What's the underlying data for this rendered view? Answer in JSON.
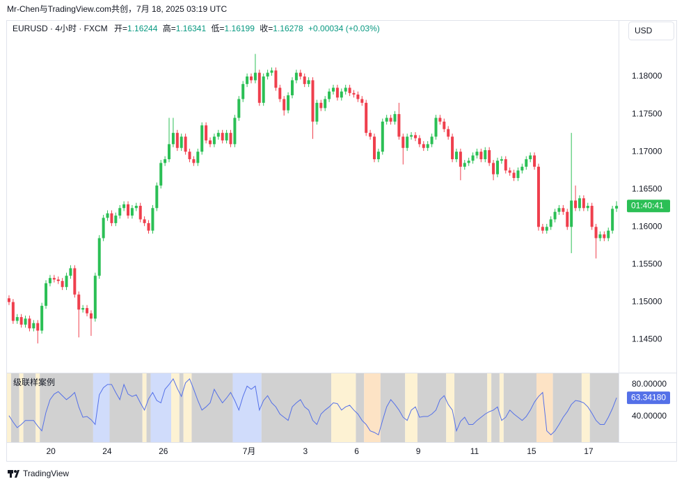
{
  "header": {
    "title": "Mr-Chen与TradingView.com共创，7月 18, 2025 03:19 UTC"
  },
  "chart_data": {
    "type": "candlestick",
    "symbol": "EURUSD · 4小时 · FXCM",
    "legend_labels": {
      "open": "开=",
      "high": "高=",
      "low": "低=",
      "close": "收="
    },
    "change": "+0.00034 (+0.03%)",
    "currency": "USD",
    "countdown": "01:40:41",
    "open": [
      1.1505,
      1.15,
      1.1475,
      1.148,
      1.147,
      1.1478,
      1.1465,
      1.1472,
      1.1462,
      1.1495,
      1.1525,
      1.1532,
      1.153,
      1.1528,
      1.152,
      1.1535,
      1.1545,
      1.151,
      1.149,
      1.1492,
      1.1485,
      1.1478,
      1.1535,
      1.1585,
      1.1612,
      1.1618,
      1.1605,
      1.1615,
      1.1625,
      1.163,
      1.1615,
      1.1625,
      1.1628,
      1.161,
      1.1605,
      1.1595,
      1.1625,
      1.1655,
      1.1685,
      1.169,
      1.171,
      1.1725,
      1.1705,
      1.172,
      1.17,
      1.169,
      1.1685,
      1.17,
      1.1735,
      1.1715,
      1.171,
      1.172,
      1.1725,
      1.1715,
      1.1725,
      1.171,
      1.1745,
      1.177,
      1.179,
      1.18,
      1.1795,
      1.1805,
      1.1765,
      1.18,
      1.1805,
      1.1808,
      1.1785,
      1.177,
      1.1755,
      1.1775,
      1.1795,
      1.1805,
      1.18,
      1.179,
      1.1795,
      1.174,
      1.1765,
      1.1758,
      1.177,
      1.178,
      1.1785,
      1.1772,
      1.178,
      1.1785,
      1.1778,
      1.1776,
      1.177,
      1.1765,
      1.1725,
      1.172,
      1.169,
      1.17,
      1.174,
      1.1745,
      1.174,
      1.175,
      1.172,
      1.1705,
      1.172,
      1.1722,
      1.1718,
      1.171,
      1.1705,
      1.171,
      1.172,
      1.1745,
      1.174,
      1.173,
      1.172,
      1.169,
      1.17,
      1.168,
      1.1685,
      1.1688,
      1.1695,
      1.17,
      1.169,
      1.1702,
      1.1685,
      1.167,
      1.1688,
      1.169,
      1.1675,
      1.1672,
      1.1665,
      1.1675,
      1.168,
      1.169,
      1.1695,
      1.168,
      1.16,
      1.1595,
      1.16,
      1.161,
      1.162,
      1.1625,
      1.162,
      1.16,
      1.1635,
      1.1625,
      1.1638,
      1.1625,
      1.1628,
      1.16,
      1.1585,
      1.159,
      1.1585,
      1.1595,
      1.16244
    ],
    "high": [
      1.1509,
      1.1504,
      1.1484,
      1.1484,
      1.1482,
      1.1482,
      1.1476,
      1.1476,
      1.1499,
      1.1529,
      1.1536,
      1.1536,
      1.1534,
      1.1532,
      1.1539,
      1.1549,
      1.1549,
      1.1514,
      1.1496,
      1.1496,
      1.1489,
      1.1539,
      1.1589,
      1.1616,
      1.1622,
      1.1622,
      1.1619,
      1.1629,
      1.1634,
      1.1634,
      1.1629,
      1.1632,
      1.1632,
      1.1614,
      1.1609,
      1.1629,
      1.1659,
      1.1689,
      1.1694,
      1.1745,
      1.1745,
      1.1729,
      1.1724,
      1.1724,
      1.1704,
      1.1694,
      1.1704,
      1.1739,
      1.1739,
      1.1719,
      1.1724,
      1.1729,
      1.1729,
      1.1729,
      1.1729,
      1.1749,
      1.1774,
      1.1794,
      1.1804,
      1.1804,
      1.183,
      1.1809,
      1.1804,
      1.1809,
      1.1812,
      1.1812,
      1.1789,
      1.1774,
      1.1779,
      1.1799,
      1.1809,
      1.1809,
      1.1804,
      1.1799,
      1.1799,
      1.1769,
      1.1769,
      1.1774,
      1.1784,
      1.1789,
      1.1789,
      1.1784,
      1.1789,
      1.1789,
      1.1782,
      1.178,
      1.1774,
      1.1769,
      1.1729,
      1.1724,
      1.1704,
      1.1744,
      1.1749,
      1.1749,
      1.1754,
      1.1765,
      1.1724,
      1.1724,
      1.1726,
      1.1726,
      1.1722,
      1.1714,
      1.1714,
      1.1724,
      1.1749,
      1.1749,
      1.1744,
      1.1734,
      1.1724,
      1.1704,
      1.1704,
      1.1689,
      1.1692,
      1.1699,
      1.1704,
      1.1704,
      1.1706,
      1.1706,
      1.1689,
      1.1692,
      1.1694,
      1.1694,
      1.1679,
      1.1676,
      1.1679,
      1.1684,
      1.1694,
      1.1699,
      1.1699,
      1.1684,
      1.1604,
      1.1604,
      1.1614,
      1.1624,
      1.1629,
      1.1629,
      1.1624,
      1.1725,
      1.1655,
      1.1642,
      1.1642,
      1.1632,
      1.1632,
      1.1604,
      1.1594,
      1.1594,
      1.1599,
      1.1628,
      1.16341
    ],
    "low": [
      1.1496,
      1.1471,
      1.1471,
      1.1466,
      1.1466,
      1.1461,
      1.1461,
      1.1445,
      1.1458,
      1.1491,
      1.1521,
      1.1526,
      1.1524,
      1.1516,
      1.1516,
      1.1531,
      1.1506,
      1.1453,
      1.1486,
      1.1481,
      1.1455,
      1.1474,
      1.1531,
      1.1581,
      1.1608,
      1.1601,
      1.1601,
      1.1611,
      1.1621,
      1.1611,
      1.1611,
      1.1621,
      1.1606,
      1.1601,
      1.1591,
      1.1591,
      1.1621,
      1.1651,
      1.1681,
      1.1686,
      1.1706,
      1.1701,
      1.1701,
      1.1696,
      1.1686,
      1.1681,
      1.1681,
      1.1696,
      1.1711,
      1.1706,
      1.1706,
      1.1716,
      1.1711,
      1.1711,
      1.1706,
      1.1706,
      1.1741,
      1.1766,
      1.1786,
      1.1791,
      1.1791,
      1.1761,
      1.1761,
      1.1796,
      1.1801,
      1.1781,
      1.1766,
      1.1748,
      1.1751,
      1.1771,
      1.1791,
      1.1796,
      1.1786,
      1.1786,
      1.1717,
      1.1736,
      1.1754,
      1.1754,
      1.1766,
      1.1776,
      1.1768,
      1.1768,
      1.1776,
      1.1774,
      1.1772,
      1.1766,
      1.1761,
      1.1721,
      1.1716,
      1.1686,
      1.1686,
      1.1696,
      1.1736,
      1.1736,
      1.1736,
      1.1716,
      1.1683,
      1.1701,
      1.1716,
      1.1714,
      1.1706,
      1.1701,
      1.1701,
      1.1706,
      1.1716,
      1.1736,
      1.1726,
      1.1716,
      1.1686,
      1.1686,
      1.1662,
      1.1676,
      1.1681,
      1.1684,
      1.1691,
      1.1686,
      1.1686,
      1.1681,
      1.1662,
      1.1666,
      1.1684,
      1.1671,
      1.1668,
      1.1661,
      1.1661,
      1.1671,
      1.1676,
      1.1686,
      1.1676,
      1.1595,
      1.1591,
      1.1591,
      1.1596,
      1.1606,
      1.1616,
      1.1616,
      1.1596,
      1.1565,
      1.1621,
      1.1621,
      1.1621,
      1.1621,
      1.1596,
      1.1558,
      1.1581,
      1.1581,
      1.1581,
      1.1591,
      1.16199
    ],
    "close": [
      1.15,
      1.1475,
      1.148,
      1.147,
      1.1478,
      1.1465,
      1.1472,
      1.1462,
      1.1495,
      1.1525,
      1.1532,
      1.153,
      1.1528,
      1.152,
      1.1535,
      1.1545,
      1.151,
      1.149,
      1.1492,
      1.1485,
      1.1478,
      1.1535,
      1.1585,
      1.1612,
      1.1618,
      1.1605,
      1.1615,
      1.1625,
      1.163,
      1.1615,
      1.1625,
      1.1628,
      1.161,
      1.1605,
      1.1595,
      1.1625,
      1.1655,
      1.1685,
      1.169,
      1.171,
      1.1725,
      1.1705,
      1.172,
      1.17,
      1.169,
      1.1685,
      1.17,
      1.1735,
      1.1715,
      1.171,
      1.172,
      1.1725,
      1.1715,
      1.1725,
      1.171,
      1.1745,
      1.177,
      1.179,
      1.18,
      1.1795,
      1.1805,
      1.1765,
      1.18,
      1.1805,
      1.1808,
      1.1785,
      1.177,
      1.1755,
      1.1775,
      1.1795,
      1.1805,
      1.18,
      1.179,
      1.1795,
      1.174,
      1.1765,
      1.1758,
      1.177,
      1.178,
      1.1785,
      1.1772,
      1.178,
      1.1785,
      1.1778,
      1.1776,
      1.177,
      1.1765,
      1.1725,
      1.172,
      1.169,
      1.17,
      1.174,
      1.1745,
      1.174,
      1.175,
      1.172,
      1.1705,
      1.172,
      1.1722,
      1.1718,
      1.171,
      1.1705,
      1.171,
      1.172,
      1.1745,
      1.174,
      1.173,
      1.172,
      1.169,
      1.17,
      1.168,
      1.1685,
      1.1688,
      1.1695,
      1.17,
      1.169,
      1.1702,
      1.1685,
      1.167,
      1.1688,
      1.169,
      1.1675,
      1.1672,
      1.1665,
      1.1675,
      1.168,
      1.169,
      1.1695,
      1.168,
      1.16,
      1.1595,
      1.16,
      1.161,
      1.162,
      1.1625,
      1.162,
      1.16,
      1.1635,
      1.1625,
      1.1638,
      1.1625,
      1.1628,
      1.16,
      1.1585,
      1.159,
      1.1585,
      1.1595,
      1.1624,
      1.16278
    ],
    "up_color": "#2bbf55",
    "down_color": "#ef3f4d",
    "ylim": [
      1.1407,
      1.1874
    ],
    "yticks": [
      {
        "value": 1.18,
        "label": "1.18000"
      },
      {
        "value": 1.175,
        "label": "1.17500"
      },
      {
        "value": 1.17,
        "label": "1.17000"
      },
      {
        "value": 1.165,
        "label": "1.16500"
      },
      {
        "value": 1.16,
        "label": "1.16000"
      },
      {
        "value": 1.155,
        "label": "1.15500"
      },
      {
        "value": 1.15,
        "label": "1.15000"
      },
      {
        "value": 1.145,
        "label": "1.14500"
      }
    ],
    "xlim": [
      -0.5,
      148.5
    ],
    "xticks": [
      {
        "value": 10.2,
        "label": "20"
      },
      {
        "value": 23.9,
        "label": "24"
      },
      {
        "value": 37.6,
        "label": "26"
      },
      {
        "value": 58.5,
        "label": "7月"
      },
      {
        "value": 72.2,
        "label": "3"
      },
      {
        "value": 84.7,
        "label": "6"
      },
      {
        "value": 99.7,
        "label": "9"
      },
      {
        "value": 113.4,
        "label": "11"
      },
      {
        "value": 127.3,
        "label": "15"
      },
      {
        "value": 141.2,
        "label": "17"
      }
    ],
    "indicator": {
      "title": "级联样案例",
      "color": "#5470e8",
      "values": [
        41,
        33,
        26,
        30,
        35,
        35,
        35,
        28,
        22,
        45,
        61,
        68,
        71,
        66,
        61,
        65,
        70,
        52,
        39,
        40,
        36,
        30,
        67,
        76,
        80,
        80,
        70,
        61,
        80,
        68,
        65,
        67,
        57,
        48,
        62,
        70,
        60,
        57,
        74,
        80,
        87,
        75,
        65,
        82,
        87,
        74,
        60,
        48,
        52,
        57,
        74,
        65,
        57,
        63,
        70,
        60,
        48,
        65,
        78,
        74,
        78,
        48,
        60,
        66,
        57,
        52,
        43,
        39,
        35,
        52,
        57,
        61,
        52,
        48,
        35,
        30,
        43,
        48,
        52,
        57,
        56,
        48,
        52,
        54,
        48,
        43,
        35,
        30,
        22,
        20,
        17,
        35,
        52,
        61,
        55,
        48,
        39,
        35,
        48,
        52,
        39,
        40,
        40,
        43,
        48,
        61,
        66,
        55,
        48,
        22,
        34,
        39,
        30,
        30,
        35,
        39,
        43,
        46,
        48,
        52,
        35,
        39,
        48,
        43,
        39,
        35,
        40,
        48,
        58,
        65,
        70,
        22,
        17,
        22,
        30,
        39,
        46,
        55,
        60,
        59,
        57,
        52,
        44,
        35,
        30,
        30,
        39,
        50,
        63.3418
      ],
      "value_labels": [
        null,
        null,
        null,
        null,
        null,
        null,
        null,
        null,
        null,
        null,
        null,
        null,
        null,
        null,
        null,
        null,
        null,
        null,
        null,
        null,
        null,
        null,
        null,
        null,
        null,
        null,
        null,
        null,
        null,
        null,
        null,
        null,
        null,
        null,
        null,
        null,
        null,
        null,
        null,
        null,
        null,
        null,
        null,
        null,
        null,
        null,
        null,
        null,
        null,
        null,
        null,
        null,
        null,
        null,
        null,
        null,
        null,
        null,
        null,
        null,
        null,
        null,
        null,
        null,
        null,
        null,
        null,
        null,
        null,
        null,
        null,
        null,
        null,
        null,
        null,
        null,
        null,
        null,
        null,
        null,
        null,
        null,
        null,
        null,
        null,
        null,
        null,
        null,
        null,
        null,
        null,
        null,
        null,
        null,
        null,
        null,
        null,
        null,
        null,
        null,
        null,
        null,
        null,
        null,
        null,
        null,
        null,
        null,
        null,
        null,
        null,
        null,
        null,
        null,
        null,
        null,
        null,
        null,
        null,
        null,
        null,
        null,
        null,
        null,
        null,
        null,
        null,
        null,
        null,
        null,
        null,
        null,
        null,
        null,
        null,
        null,
        null,
        null,
        null,
        null,
        null,
        null,
        null,
        null,
        null,
        null,
        null,
        null,
        "63.34180"
      ],
      "ylim": [
        7.8,
        93.9
      ],
      "yticks": [
        {
          "value": 80,
          "label": "80.00000"
        },
        {
          "value": 40,
          "label": "40.00000"
        }
      ],
      "band_colors": {
        "gray": "#d1d1d1",
        "blue": "#d0dcfb",
        "yellow": "#fdf2d3",
        "orange": "#fde3c5"
      },
      "bands": [
        {
          "from": 0,
          "to": 0,
          "color": "yellow"
        },
        {
          "from": 1,
          "to": 2,
          "color": "gray"
        },
        {
          "from": 3,
          "to": 3,
          "color": "yellow"
        },
        {
          "from": 4,
          "to": 6,
          "color": "gray"
        },
        {
          "from": 7,
          "to": 7,
          "color": "yellow"
        },
        {
          "from": 8,
          "to": 20,
          "color": "gray"
        },
        {
          "from": 21,
          "to": 24,
          "color": "blue"
        },
        {
          "from": 25,
          "to": 32,
          "color": "gray"
        },
        {
          "from": 33,
          "to": 33,
          "color": "yellow"
        },
        {
          "from": 34,
          "to": 34,
          "color": "gray"
        },
        {
          "from": 35,
          "to": 39,
          "color": "blue"
        },
        {
          "from": 40,
          "to": 41,
          "color": "yellow"
        },
        {
          "from": 42,
          "to": 42,
          "color": "gray"
        },
        {
          "from": 43,
          "to": 44,
          "color": "yellow"
        },
        {
          "from": 45,
          "to": 54,
          "color": "gray"
        },
        {
          "from": 55,
          "to": 61,
          "color": "blue"
        },
        {
          "from": 62,
          "to": 78,
          "color": "gray"
        },
        {
          "from": 79,
          "to": 84,
          "color": "yellow"
        },
        {
          "from": 85,
          "to": 86,
          "color": "gray"
        },
        {
          "from": 87,
          "to": 90,
          "color": "orange"
        },
        {
          "from": 91,
          "to": 96,
          "color": "gray"
        },
        {
          "from": 97,
          "to": 99,
          "color": "yellow"
        },
        {
          "from": 100,
          "to": 106,
          "color": "gray"
        },
        {
          "from": 107,
          "to": 108,
          "color": "yellow"
        },
        {
          "from": 109,
          "to": 116,
          "color": "gray"
        },
        {
          "from": 117,
          "to": 117,
          "color": "yellow"
        },
        {
          "from": 118,
          "to": 119,
          "color": "gray"
        },
        {
          "from": 120,
          "to": 120,
          "color": "yellow"
        },
        {
          "from": 121,
          "to": 128,
          "color": "gray"
        },
        {
          "from": 129,
          "to": 132,
          "color": "orange"
        },
        {
          "from": 133,
          "to": 139,
          "color": "gray"
        },
        {
          "from": 140,
          "to": 141,
          "color": "yellow"
        },
        {
          "from": 142,
          "to": 148,
          "color": "gray"
        }
      ]
    }
  },
  "footer": {
    "logo": "TradingView"
  }
}
